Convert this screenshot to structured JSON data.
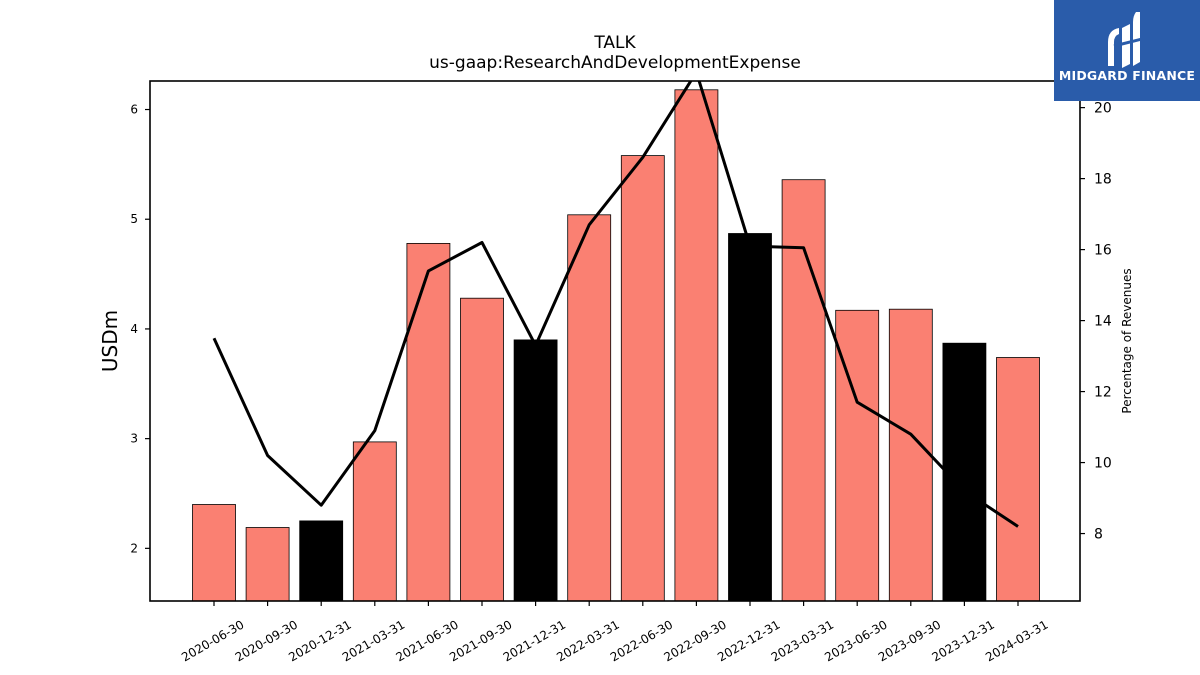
{
  "chart_data": {
    "type": "bar",
    "title": "TALK",
    "subtitle": "us-gaap:ResearchAndDevelopmentExpense",
    "ylabel": "USDm",
    "y2label": "Percentage of Revenues",
    "ylim": [
      1.52,
      6.26
    ],
    "y2lim": [
      6.1,
      20.75
    ],
    "yticks": [
      2,
      3,
      4,
      5,
      6
    ],
    "y2ticks": [
      8,
      10,
      12,
      14,
      16,
      18,
      20
    ],
    "categories": [
      "2020-06-30",
      "2020-09-30",
      "2020-12-31",
      "2021-03-31",
      "2021-06-30",
      "2021-09-30",
      "2021-12-31",
      "2022-03-31",
      "2022-06-30",
      "2022-09-30",
      "2022-12-31",
      "2023-03-31",
      "2023-06-30",
      "2023-09-30",
      "2023-12-31",
      "2024-03-31"
    ],
    "series": [
      {
        "type": "bar",
        "axis": "left",
        "values": [
          2.4,
          2.19,
          2.25,
          2.97,
          4.78,
          4.28,
          3.9,
          5.04,
          5.58,
          6.18,
          4.87,
          5.36,
          4.17,
          4.18,
          3.87,
          3.74
        ],
        "colors": [
          "#fa8072",
          "#fa8072",
          "#000000",
          "#fa8072",
          "#fa8072",
          "#fa8072",
          "#000000",
          "#fa8072",
          "#fa8072",
          "#fa8072",
          "#000000",
          "#fa8072",
          "#fa8072",
          "#fa8072",
          "#000000",
          "#fa8072"
        ]
      },
      {
        "type": "line",
        "axis": "right",
        "color": "#000000",
        "values": [
          13.5,
          10.2,
          8.8,
          10.9,
          15.4,
          16.2,
          13.3,
          16.7,
          18.6,
          21.0,
          16.1,
          16.05,
          11.7,
          10.8,
          9.2,
          8.2
        ]
      }
    ]
  },
  "logo": {
    "text": "MIDGARD FINANCE",
    "background": "#2a5caa"
  }
}
